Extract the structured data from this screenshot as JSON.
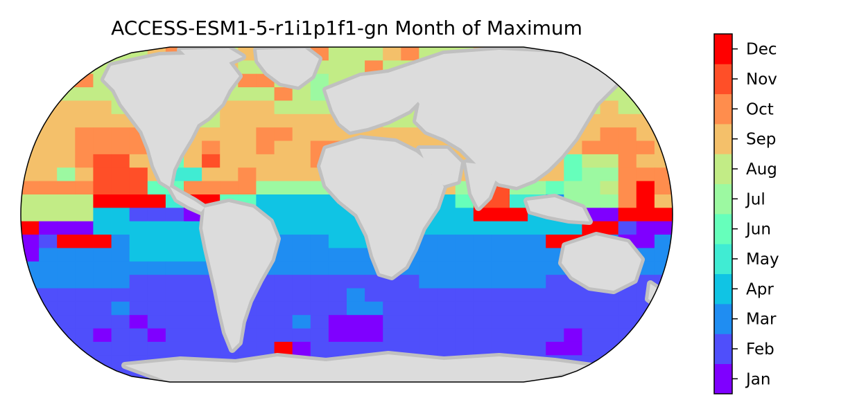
{
  "title": "ACCESS-ESM1-5-r1i1p1f1-gn Month of Maximum",
  "colorbar": {
    "labels": [
      "Jan",
      "Feb",
      "Mar",
      "Apr",
      "May",
      "Jun",
      "Jul",
      "Aug",
      "Sep",
      "Oct",
      "Nov",
      "Dec"
    ],
    "colors": [
      "#7f00ff",
      "#4f4ffb",
      "#1f8df2",
      "#10c4e4",
      "#40ecd3",
      "#66ffbb",
      "#9cf9a1",
      "#c2ec86",
      "#f4c06a",
      "#ff8d4d",
      "#ff4f28",
      "#ff0000"
    ]
  },
  "map": {
    "ocean_color": "#c0c0c0",
    "land_color": "#dcdcdc",
    "projection": "robinson"
  }
}
